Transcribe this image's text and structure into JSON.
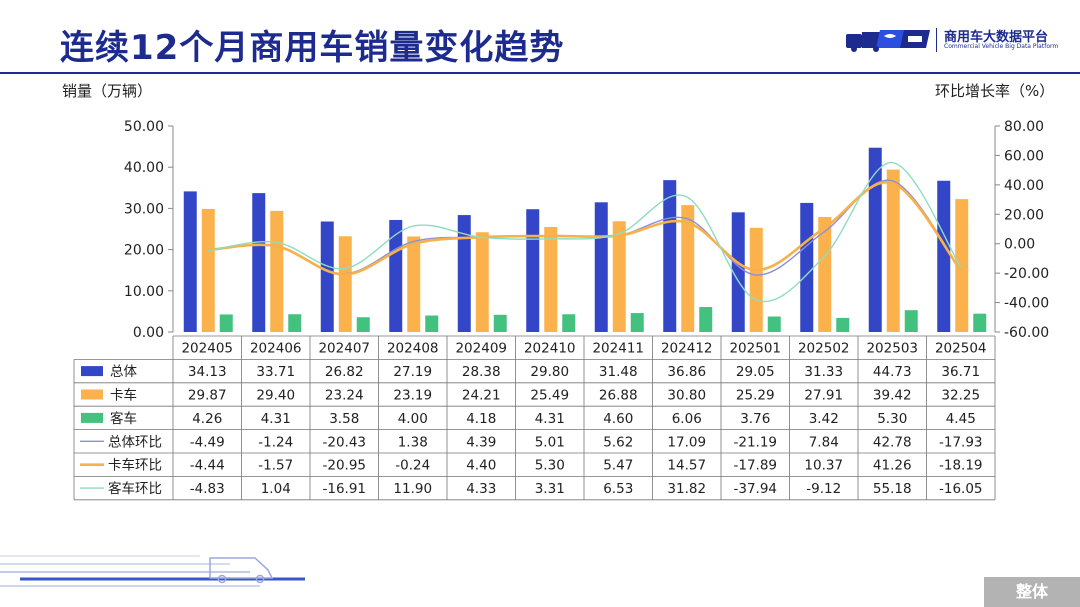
{
  "header": {
    "title": "连续12个月商用车销量变化趋势",
    "logo_cn": "商用车大数据平台",
    "logo_en": "Commercial Vehicle Big Data Platform"
  },
  "footer": {
    "tab_label": "整体"
  },
  "colors": {
    "title": "#1d2b8f",
    "total": "#3346c8",
    "truck": "#fbb24c",
    "bus": "#43c27f",
    "total_ratio": "#8a8fd6",
    "truck_ratio": "#f7b14a",
    "bus_ratio": "#8fdcc0"
  },
  "chart_data": {
    "type": "bar",
    "title": "连续12个月商用车销量变化趋势",
    "ylabel": "销量（万辆）",
    "y2label": "环比增长率（%）",
    "ylim": [
      0,
      50
    ],
    "y2lim": [
      -60,
      80
    ],
    "yticks": [
      "0.00",
      "10.00",
      "20.00",
      "30.00",
      "40.00",
      "50.00"
    ],
    "y2ticks": [
      "-60.00",
      "-40.00",
      "-20.00",
      "0.00",
      "20.00",
      "40.00",
      "60.00",
      "80.00"
    ],
    "grid": false,
    "categories": [
      "202405",
      "202406",
      "202407",
      "202408",
      "202409",
      "202410",
      "202411",
      "202412",
      "202501",
      "202502",
      "202503",
      "202504"
    ],
    "series": [
      {
        "name": "总体",
        "kind": "bar",
        "axis": "left",
        "values": [
          34.13,
          33.71,
          26.82,
          27.19,
          28.38,
          29.8,
          31.48,
          36.86,
          29.05,
          31.33,
          44.73,
          36.71
        ],
        "labels": [
          "34.13",
          "33.71",
          "26.82",
          "27.19",
          "28.38",
          "29.80",
          "31.48",
          "36.86",
          "29.05",
          "31.33",
          "44.73",
          "36.71"
        ]
      },
      {
        "name": "卡车",
        "kind": "bar",
        "axis": "left",
        "values": [
          29.87,
          29.4,
          23.24,
          23.19,
          24.21,
          25.49,
          26.88,
          30.8,
          25.29,
          27.91,
          39.42,
          32.25
        ],
        "labels": [
          "29.87",
          "29.40",
          "23.24",
          "23.19",
          "24.21",
          "25.49",
          "26.88",
          "30.80",
          "25.29",
          "27.91",
          "39.42",
          "32.25"
        ]
      },
      {
        "name": "客车",
        "kind": "bar",
        "axis": "left",
        "values": [
          4.26,
          4.31,
          3.58,
          4.0,
          4.18,
          4.31,
          4.6,
          6.06,
          3.76,
          3.42,
          5.3,
          4.45
        ],
        "labels": [
          "4.26",
          "4.31",
          "3.58",
          "4.00",
          "4.18",
          "4.31",
          "4.60",
          "6.06",
          "3.76",
          "3.42",
          "5.30",
          "4.45"
        ]
      },
      {
        "name": "总体环比",
        "kind": "line",
        "axis": "right",
        "values": [
          -4.49,
          -1.24,
          -20.43,
          1.38,
          4.39,
          5.01,
          5.62,
          17.09,
          -21.19,
          7.84,
          42.78,
          -17.93
        ],
        "labels": [
          "-4.49",
          "-1.24",
          "-20.43",
          "1.38",
          "4.39",
          "5.01",
          "5.62",
          "17.09",
          "-21.19",
          "7.84",
          "42.78",
          "-17.93"
        ]
      },
      {
        "name": "卡车环比",
        "kind": "line",
        "axis": "right",
        "values": [
          -4.44,
          -1.57,
          -20.95,
          -0.24,
          4.4,
          5.3,
          5.47,
          14.57,
          -17.89,
          10.37,
          41.26,
          -18.19
        ],
        "labels": [
          "-4.44",
          "-1.57",
          "-20.95",
          "-0.24",
          "4.40",
          "5.30",
          "5.47",
          "14.57",
          "-17.89",
          "10.37",
          "41.26",
          "-18.19"
        ]
      },
      {
        "name": "客车环比",
        "kind": "line",
        "axis": "right",
        "values": [
          -4.83,
          1.04,
          -16.91,
          11.9,
          4.33,
          3.31,
          6.53,
          31.82,
          -37.94,
          -9.12,
          55.18,
          -16.05
        ],
        "labels": [
          "-4.83",
          "1.04",
          "-16.91",
          "11.90",
          "4.33",
          "3.31",
          "6.53",
          "31.82",
          "-37.94",
          "-9.12",
          "55.18",
          "-16.05"
        ]
      }
    ]
  }
}
